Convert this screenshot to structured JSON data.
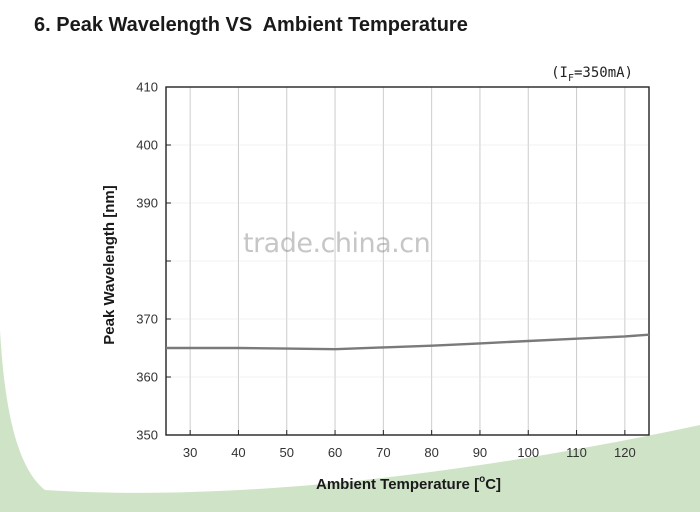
{
  "page": {
    "title": "6. Peak Wavelength VS  Ambient Temperature",
    "watermark": "trade.china.cn",
    "colors": {
      "background_accent": "#cfe3c7",
      "line": "#7a7a7a",
      "grid": "#cccccc",
      "axis": "#222222"
    }
  },
  "chart_data": {
    "type": "line",
    "title": "",
    "condition": "(IF=350mA)",
    "condition_parts": {
      "open": "(I",
      "subscript": "F",
      "close": "=350mA)"
    },
    "xlabel": "Ambient Temperature [°C]",
    "xlabel_parts": {
      "pre": "Ambient Temperature [",
      "sup": "o",
      "post": "C]"
    },
    "ylabel": "Peak Wavelength [nm]",
    "xlim": [
      25,
      125
    ],
    "ylim": [
      350,
      410
    ],
    "xticks": [
      30,
      40,
      50,
      60,
      70,
      80,
      90,
      100,
      110,
      120
    ],
    "yticks": [
      350,
      360,
      370,
      380,
      390,
      400,
      410
    ],
    "yticks_visible": [
      "350",
      "360",
      "370",
      "",
      "390",
      "400",
      "410"
    ],
    "grid": true,
    "series": [
      {
        "x": [
          25,
          30,
          40,
          50,
          60,
          70,
          80,
          90,
          100,
          110,
          120,
          125
        ],
        "y": [
          365.0,
          365.0,
          365.0,
          364.9,
          364.8,
          365.1,
          365.4,
          365.8,
          366.2,
          366.6,
          367.0,
          367.3
        ]
      }
    ]
  }
}
